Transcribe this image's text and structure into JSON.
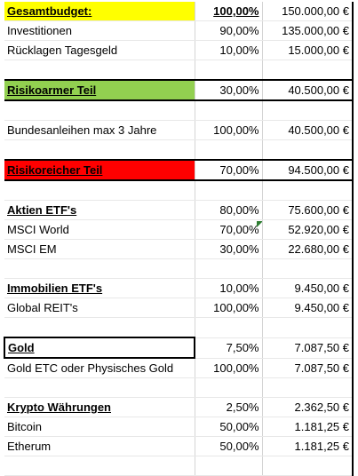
{
  "rows": [
    {
      "label": "Gesamtbudget:",
      "pct": "100,00%",
      "amount": "150.000,00 €"
    },
    {
      "label": "Investitionen",
      "pct": "90,00%",
      "amount": "135.000,00 €"
    },
    {
      "label": "Rücklagen Tagesgeld",
      "pct": "10,00%",
      "amount": "15.000,00 €"
    },
    {
      "label": "Risikoarmer Teil",
      "pct": "30,00%",
      "amount": "40.500,00 €"
    },
    {
      "label": "Bundesanleihen max 3 Jahre",
      "pct": "100,00%",
      "amount": "40.500,00 €"
    },
    {
      "label": "Risikoreicher Teil",
      "pct": "70,00%",
      "amount": "94.500,00 €"
    },
    {
      "label": "Aktien ETF's",
      "pct": "80,00%",
      "amount": "75.600,00 €"
    },
    {
      "label": "MSCI World",
      "pct": "70,00%",
      "amount": "52.920,00 €"
    },
    {
      "label": "MSCI EM",
      "pct": "30,00%",
      "amount": "22.680,00 €"
    },
    {
      "label": "Immobilien ETF's",
      "pct": "10,00%",
      "amount": "9.450,00 €"
    },
    {
      "label": "Global REIT's",
      "pct": "100,00%",
      "amount": "9.450,00 €"
    },
    {
      "label": "Gold",
      "pct": "7,50%",
      "amount": "7.087,50 €"
    },
    {
      "label": "Gold ETC oder Physisches Gold",
      "pct": "100,00%",
      "amount": "7.087,50 €"
    },
    {
      "label": "Krypto Währungen",
      "pct": "2,50%",
      "amount": "2.362,50 €"
    },
    {
      "label": "Bitcoin",
      "pct": "50,00%",
      "amount": "1.181,25 €"
    },
    {
      "label": "Etherum",
      "pct": "50,00%",
      "amount": "1.181,25 €"
    }
  ],
  "colors": {
    "header_yellow": "#ffff00",
    "low_risk_green": "#92d050",
    "high_risk_red": "#ff0000",
    "comment_marker": "#2e7d32"
  }
}
